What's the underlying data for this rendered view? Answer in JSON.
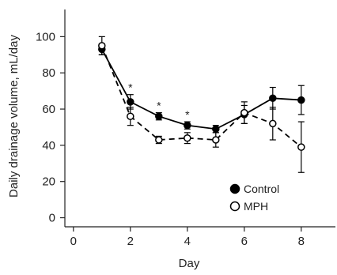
{
  "chart_data": {
    "type": "line",
    "title": "",
    "xlabel": "Day",
    "ylabel": "Daily drainage volume, mL/day",
    "xlim": [
      -0.3,
      9.2
    ],
    "ylim": [
      -5,
      115
    ],
    "xticks": [
      0,
      2,
      4,
      6,
      8
    ],
    "yticks": [
      0,
      20,
      40,
      60,
      80,
      100
    ],
    "x": [
      1,
      2,
      3,
      4,
      5,
      6,
      7,
      8
    ],
    "series": [
      {
        "name": "Control",
        "marker": "filled-circle",
        "line": "solid",
        "color": "#000000",
        "values": [
          93,
          64,
          56,
          51,
          49,
          57,
          66,
          65
        ],
        "err": [
          3,
          4,
          2,
          2,
          2,
          5,
          6,
          8
        ]
      },
      {
        "name": "MPH",
        "marker": "open-circle",
        "line": "dashed",
        "color": "#000000",
        "values": [
          95,
          56,
          43,
          44,
          43,
          58,
          52,
          39
        ],
        "err": [
          5,
          5,
          2,
          3,
          4,
          6,
          9,
          14
        ]
      }
    ],
    "significance_marks": [
      {
        "x": 2,
        "label": "*"
      },
      {
        "x": 3,
        "label": "*"
      },
      {
        "x": 4,
        "label": "*"
      }
    ],
    "legend": {
      "position": "bottom-right"
    },
    "grid": false
  }
}
